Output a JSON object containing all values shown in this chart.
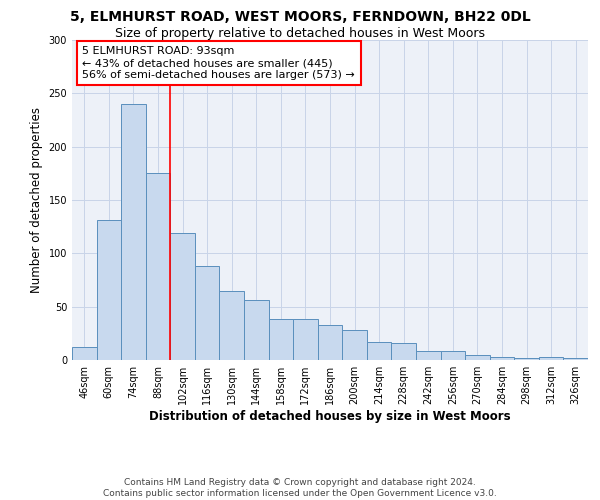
{
  "title_line1": "5, ELMHURST ROAD, WEST MOORS, FERNDOWN, BH22 0DL",
  "title_line2": "Size of property relative to detached houses in West Moors",
  "xlabel": "Distribution of detached houses by size in West Moors",
  "ylabel": "Number of detached properties",
  "footer_line1": "Contains HM Land Registry data © Crown copyright and database right 2024.",
  "footer_line2": "Contains public sector information licensed under the Open Government Licence v3.0.",
  "annotation_line1": "5 ELMHURST ROAD: 93sqm",
  "annotation_line2": "← 43% of detached houses are smaller (445)",
  "annotation_line3": "56% of semi-detached houses are larger (573) →",
  "bar_labels": [
    "46sqm",
    "60sqm",
    "74sqm",
    "88sqm",
    "102sqm",
    "116sqm",
    "130sqm",
    "144sqm",
    "158sqm",
    "172sqm",
    "186sqm",
    "200sqm",
    "214sqm",
    "228sqm",
    "242sqm",
    "256sqm",
    "270sqm",
    "284sqm",
    "298sqm",
    "312sqm",
    "326sqm"
  ],
  "bar_values": [
    12,
    131,
    240,
    175,
    119,
    88,
    65,
    56,
    38,
    38,
    33,
    28,
    17,
    16,
    8,
    8,
    5,
    3,
    2,
    3,
    2
  ],
  "bar_color": "#c8d9ee",
  "bar_edge_color": "#5a8fbd",
  "vline_x": 3.5,
  "vline_color": "red",
  "ylim": [
    0,
    300
  ],
  "yticks": [
    0,
    50,
    100,
    150,
    200,
    250,
    300
  ],
  "grid_color": "#c8d4e8",
  "bg_color": "#edf1f8",
  "annotation_box_color": "white",
  "annotation_box_edge": "red",
  "title_fontsize": 10,
  "subtitle_fontsize": 9,
  "axis_label_fontsize": 8.5,
  "tick_fontsize": 7,
  "annotation_fontsize": 8,
  "footer_fontsize": 6.5
}
